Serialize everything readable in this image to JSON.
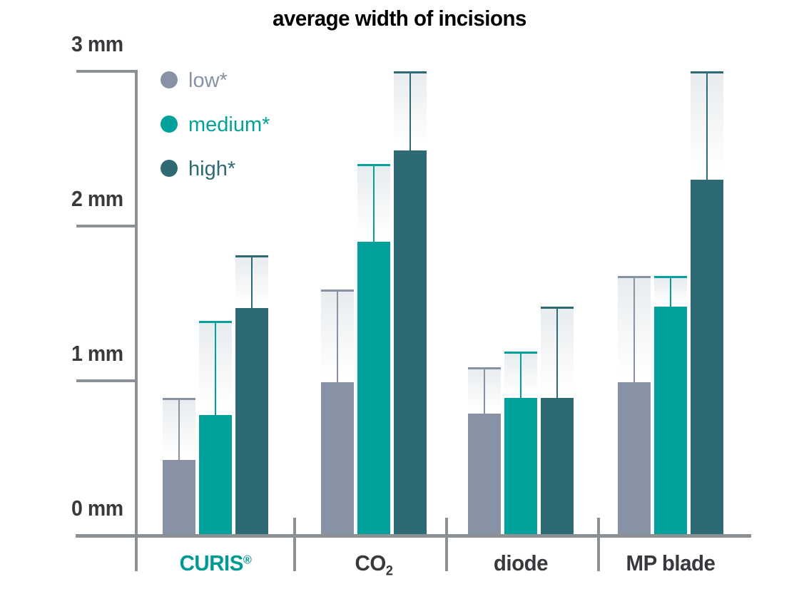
{
  "title": "average width of incisions",
  "colors": {
    "low": "#8793a5",
    "medium": "#00a29b",
    "high": "#2e6a74",
    "axis": "#8b9094",
    "text_dark": "#37393c",
    "category_emphasis": "#009a94",
    "error_fill_top": "#e8ecef",
    "background": "#ffffff"
  },
  "legend": {
    "items": [
      {
        "label": "low*",
        "color": "#8793a5"
      },
      {
        "label": "medium*",
        "color": "#00a29b"
      },
      {
        "label": "high*",
        "color": "#2e6a74"
      }
    ]
  },
  "chart_data": {
    "type": "bar",
    "title": "average width of incisions",
    "xlabel": "",
    "ylabel": "mm",
    "ylim": [
      0,
      3
    ],
    "grid": false,
    "error_bars": true,
    "legend_position": "top-left",
    "y_ticks": [
      {
        "value": 3,
        "label": "3 mm"
      },
      {
        "value": 2,
        "label": "2 mm"
      },
      {
        "value": 1,
        "label": "1 mm"
      },
      {
        "value": 0,
        "label": "0 mm"
      }
    ],
    "categories": [
      {
        "label": "CURIS",
        "sup": "®",
        "emphasis": true
      },
      {
        "label": "CO",
        "sub": "2",
        "emphasis": false
      },
      {
        "label": "diode",
        "emphasis": false
      },
      {
        "label": "MP blade",
        "emphasis": false
      }
    ],
    "series": [
      {
        "name": "low*",
        "color": "#8793a5",
        "values": [
          0.49,
          0.99,
          0.79,
          0.99
        ],
        "error_top": [
          0.89,
          1.59,
          1.09,
          1.68
        ]
      },
      {
        "name": "medium*",
        "color": "#00a29b",
        "values": [
          0.78,
          1.9,
          0.89,
          1.48
        ],
        "error_top": [
          1.39,
          2.4,
          1.19,
          1.68
        ]
      },
      {
        "name": "high*",
        "color": "#2e6a74",
        "values": [
          1.47,
          2.49,
          0.89,
          2.3
        ],
        "error_top": [
          1.81,
          3.0,
          1.48,
          3.0
        ]
      }
    ],
    "units": "mm"
  }
}
